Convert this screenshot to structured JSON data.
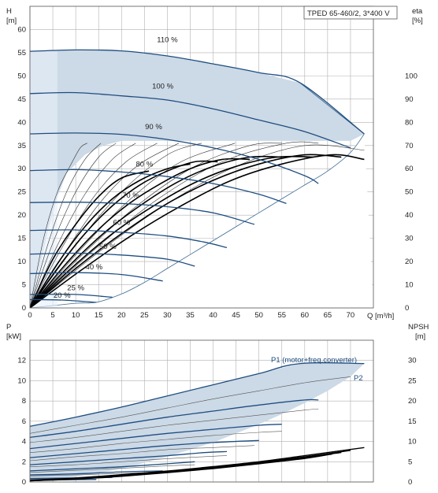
{
  "chart_data": [
    {
      "type": "line",
      "title": "TPED 65-460/2, 3*400 V",
      "xlabel": "Q [m³/h]",
      "ylabel_left_unit": "H",
      "ylabel_left_sub": "[m]",
      "ylabel_right_unit": "eta",
      "ylabel_right_sub": "[%]",
      "xlim": [
        0,
        75
      ],
      "ylim": [
        0,
        65
      ],
      "y2lim": [
        0,
        130
      ],
      "x_ticks": [
        0,
        5,
        10,
        15,
        20,
        25,
        30,
        35,
        40,
        45,
        50,
        55,
        60,
        65,
        70
      ],
      "y_ticks": [
        0,
        5,
        10,
        15,
        20,
        25,
        30,
        35,
        40,
        45,
        50,
        55,
        60
      ],
      "y2_ticks": [
        0,
        10,
        20,
        30,
        40,
        50,
        60,
        70,
        80,
        90,
        100
      ],
      "grid": true,
      "speed_curves": [
        {
          "name": "110 %",
          "x": [
            0,
            10,
            20,
            30,
            40,
            50,
            59,
            73
          ],
          "y": [
            55.3,
            55.6,
            55.4,
            54.3,
            52.6,
            50.7,
            48.5,
            37.5
          ]
        },
        {
          "name": "100 %",
          "x": [
            0,
            10,
            20,
            30,
            40,
            50,
            60,
            70
          ],
          "y": [
            46.2,
            46.4,
            45.7,
            44.8,
            42.9,
            40.5,
            38.0,
            34.5
          ]
        },
        {
          "name": "90 %",
          "x": [
            0,
            10,
            20,
            30,
            40,
            50,
            60,
            63
          ],
          "y": [
            37.5,
            37.7,
            37.4,
            36.3,
            34.5,
            32.0,
            28.5,
            26.8
          ]
        },
        {
          "name": "80 %",
          "x": [
            0,
            10,
            20,
            30,
            40,
            50,
            56
          ],
          "y": [
            29.6,
            29.8,
            29.3,
            28.3,
            26.8,
            24.5,
            22.5
          ]
        },
        {
          "name": "70 %",
          "x": [
            0,
            10,
            20,
            30,
            40,
            49
          ],
          "y": [
            22.7,
            22.8,
            22.5,
            21.8,
            20.5,
            18.0
          ]
        },
        {
          "name": "60 %",
          "x": [
            0,
            10,
            20,
            30,
            38,
            43
          ],
          "y": [
            16.7,
            16.8,
            16.3,
            15.5,
            14.2,
            13.0
          ]
        },
        {
          "name": "50 %",
          "x": [
            0,
            10,
            20,
            30,
            36
          ],
          "y": [
            11.6,
            11.8,
            11.4,
            10.5,
            9.0
          ]
        },
        {
          "name": "40 %",
          "x": [
            0,
            10,
            20,
            29
          ],
          "y": [
            7.4,
            7.6,
            7.2,
            5.8
          ]
        },
        {
          "name": "25 %",
          "x": [
            0,
            10,
            18
          ],
          "y": [
            2.9,
            2.9,
            2.3
          ]
        },
        {
          "name": "20 %",
          "x": [
            0,
            7,
            14.5
          ],
          "y": [
            1.8,
            1.7,
            1.2
          ]
        }
      ],
      "eta_curves": [
        {
          "name": "",
          "x": [
            0,
            3,
            6,
            9,
            11,
            12.5
          ],
          "y": [
            0,
            30,
            50,
            62,
            69,
            71
          ]
        },
        {
          "name": "",
          "x": [
            0,
            4,
            8,
            12,
            15.5
          ],
          "y": [
            0,
            28,
            50,
            64,
            71
          ]
        },
        {
          "name": "",
          "x": [
            0,
            5,
            10,
            15,
            18.8
          ],
          "y": [
            0,
            28,
            50,
            65,
            71
          ]
        },
        {
          "name": "",
          "x": [
            0,
            6,
            12,
            18,
            23.1
          ],
          "y": [
            0,
            27,
            49,
            64,
            71
          ]
        },
        {
          "name": "",
          "x": [
            0,
            7,
            14,
            21,
            27.8
          ],
          "y": [
            0,
            26,
            48,
            63,
            71
          ]
        },
        {
          "name": "",
          "x": [
            0,
            8,
            16,
            24,
            32.5
          ],
          "y": [
            0,
            25,
            47,
            62,
            71
          ]
        },
        {
          "name": "",
          "x": [
            0,
            10,
            20,
            30,
            37.5
          ],
          "y": [
            0,
            27,
            50,
            66,
            71
          ]
        },
        {
          "name": "",
          "x": [
            0,
            11,
            22,
            33,
            44.8
          ],
          "y": [
            0,
            25,
            47,
            63,
            71
          ]
        },
        {
          "name": "",
          "x": [
            0,
            12,
            24,
            36,
            48,
            55
          ],
          "y": [
            0,
            24,
            45,
            61,
            70,
            71
          ]
        },
        {
          "name": "",
          "x": [
            0,
            14,
            28,
            42,
            56,
            63
          ],
          "y": [
            0,
            25,
            47,
            63,
            71,
            71
          ]
        },
        {
          "name": "",
          "x": [
            0,
            15,
            30,
            45,
            60,
            73
          ],
          "y": [
            0,
            24,
            45,
            61,
            70,
            68
          ]
        }
      ],
      "eta_bold_curves": [
        {
          "name": "",
          "x": [
            0,
            5,
            10,
            15,
            20,
            26
          ],
          "y": [
            0,
            21,
            36,
            48,
            56,
            59
          ]
        },
        {
          "name": "",
          "x": [
            0,
            6,
            12,
            18,
            24,
            30,
            35
          ],
          "y": [
            0,
            19,
            35,
            47,
            55,
            60,
            62
          ]
        },
        {
          "name": "",
          "x": [
            0,
            6,
            12,
            18,
            24,
            30,
            36,
            41
          ],
          "y": [
            0,
            17,
            32,
            44,
            53,
            59,
            63,
            63
          ]
        },
        {
          "name": "",
          "x": [
            0,
            7,
            14,
            21,
            28,
            35,
            42,
            48
          ],
          "y": [
            0,
            17,
            32,
            44,
            53,
            60,
            64,
            64
          ]
        },
        {
          "name": "",
          "x": [
            0,
            8,
            16,
            24,
            32,
            40,
            48,
            55
          ],
          "y": [
            0,
            17,
            32,
            44,
            54,
            61,
            65,
            65
          ]
        },
        {
          "name": "",
          "x": [
            0,
            9,
            18,
            27,
            36,
            45,
            54,
            62
          ],
          "y": [
            0,
            17,
            32,
            44,
            54,
            61,
            65,
            65
          ]
        },
        {
          "name": "",
          "x": [
            0,
            10,
            20,
            30,
            40,
            50,
            60,
            68
          ],
          "y": [
            0,
            17,
            32,
            45,
            55,
            62,
            66,
            65
          ]
        },
        {
          "name": "",
          "x": [
            0,
            11,
            22,
            33,
            44,
            55,
            66,
            73
          ],
          "y": [
            0,
            16,
            31,
            44,
            55,
            62,
            66,
            64
          ]
        }
      ],
      "envelope": {
        "x": [
          0,
          2,
          4,
          6,
          8,
          12,
          16,
          20,
          25,
          30,
          35,
          40,
          45,
          50,
          55,
          60,
          65,
          70,
          73,
          73,
          59,
          50,
          40,
          30,
          20,
          10,
          0
        ],
        "y": [
          0,
          8,
          17,
          24,
          29,
          33,
          35,
          36,
          36,
          36,
          36,
          36,
          36,
          36,
          36,
          36,
          36,
          36,
          37.5,
          37.5,
          48.5,
          50.7,
          52.6,
          54.3,
          55.4,
          55.6,
          55.3
        ]
      },
      "lower_envelope": {
        "x": [
          0,
          10,
          14.5,
          20,
          25,
          30,
          35,
          40,
          45,
          50,
          55,
          60,
          65,
          70,
          73
        ],
        "y": [
          0,
          1,
          1.2,
          3,
          5.5,
          8.5,
          11.5,
          14.5,
          17.5,
          20.5,
          23.5,
          26.5,
          29.5,
          33.5,
          37.5
        ]
      }
    },
    {
      "type": "line",
      "xlabel": "",
      "ylabel_left_unit": "P",
      "ylabel_left_sub": "[kW]",
      "ylabel_right_unit": "NPSH",
      "ylabel_right_sub": "[m]",
      "xlim": [
        0,
        75
      ],
      "ylim": [
        0,
        14
      ],
      "y2lim": [
        0,
        35
      ],
      "x_ticks": [
        0,
        5,
        10,
        15,
        20,
        25,
        30,
        35,
        40,
        45,
        50,
        55,
        60,
        65,
        70
      ],
      "y_ticks": [
        0,
        2,
        4,
        6,
        8,
        10,
        12
      ],
      "y2_ticks": [
        0,
        5,
        10,
        15,
        20,
        25,
        30
      ],
      "grid": true,
      "annotations": [
        "P1 (motor+freq.converter)",
        "P2"
      ],
      "p1_curves": [
        {
          "name": "",
          "x": [
            0,
            10,
            20,
            30,
            40,
            50,
            59,
            73
          ],
          "y": [
            5.5,
            6.4,
            7.4,
            8.5,
            9.6,
            10.7,
            11.7,
            11.7
          ]
        },
        {
          "name": "",
          "x": [
            0,
            10,
            20,
            30,
            40,
            50,
            60,
            63
          ],
          "y": [
            4.4,
            5.0,
            5.7,
            6.4,
            7.0,
            7.6,
            8.1,
            8.1
          ]
        },
        {
          "name": "",
          "x": [
            0,
            10,
            20,
            30,
            40,
            50,
            55
          ],
          "y": [
            3.3,
            3.8,
            4.3,
            4.8,
            5.2,
            5.6,
            5.7
          ]
        },
        {
          "name": "",
          "x": [
            0,
            10,
            20,
            30,
            40,
            50
          ],
          "y": [
            2.4,
            2.8,
            3.2,
            3.6,
            3.9,
            4.1
          ]
        },
        {
          "name": "",
          "x": [
            0,
            10,
            20,
            30,
            38,
            43
          ],
          "y": [
            1.7,
            2.0,
            2.3,
            2.6,
            2.9,
            3.0
          ]
        },
        {
          "name": "",
          "x": [
            0,
            10,
            20,
            30,
            36
          ],
          "y": [
            1.1,
            1.3,
            1.5,
            1.8,
            2.0
          ]
        },
        {
          "name": "",
          "x": [
            0,
            10,
            20,
            29
          ],
          "y": [
            0.7,
            0.8,
            1.0,
            1.1
          ]
        },
        {
          "name": "",
          "x": [
            0,
            10,
            18
          ],
          "y": [
            0.35,
            0.4,
            0.45
          ]
        },
        {
          "name": "",
          "x": [
            0,
            7,
            14.5
          ],
          "y": [
            0.2,
            0.22,
            0.25
          ]
        }
      ],
      "p2_curves": [
        {
          "name": "",
          "x": [
            0,
            10,
            20,
            30,
            40,
            50,
            60,
            70
          ],
          "y": [
            4.8,
            5.6,
            6.4,
            7.3,
            8.2,
            9.0,
            9.8,
            10.4
          ]
        },
        {
          "name": "",
          "x": [
            0,
            10,
            20,
            30,
            40,
            50,
            60,
            63
          ],
          "y": [
            3.9,
            4.4,
            5.0,
            5.6,
            6.1,
            6.6,
            7.1,
            7.2
          ]
        },
        {
          "name": "",
          "x": [
            0,
            10,
            20,
            30,
            40,
            50,
            55
          ],
          "y": [
            2.9,
            3.3,
            3.8,
            4.2,
            4.6,
            4.9,
            5.0
          ]
        },
        {
          "name": "",
          "x": [
            0,
            10,
            20,
            30,
            40,
            49
          ],
          "y": [
            2.1,
            2.5,
            2.8,
            3.2,
            3.4,
            3.6
          ]
        },
        {
          "name": "",
          "x": [
            0,
            10,
            20,
            30,
            38,
            43
          ],
          "y": [
            1.5,
            1.7,
            2.0,
            2.3,
            2.5,
            2.6
          ]
        },
        {
          "name": "",
          "x": [
            0,
            10,
            20,
            30,
            36
          ],
          "y": [
            0.95,
            1.15,
            1.35,
            1.6,
            1.7
          ]
        },
        {
          "name": "",
          "x": [
            0,
            10,
            20,
            29
          ],
          "y": [
            0.6,
            0.7,
            0.85,
            0.95
          ]
        }
      ],
      "npsh_curves": [
        {
          "name": "",
          "x": [
            0,
            10,
            20,
            30,
            40,
            50,
            60,
            73
          ],
          "y2": [
            0.5,
            1.0,
            1.8,
            2.7,
            3.8,
            5.0,
            6.5,
            8.5
          ]
        },
        {
          "name": "",
          "x": [
            0,
            10,
            20,
            30,
            40,
            50,
            60,
            70
          ],
          "y2": [
            0.4,
            0.9,
            1.6,
            2.5,
            3.6,
            4.8,
            6.2,
            7.8
          ]
        },
        {
          "name": "",
          "x": [
            0,
            10,
            20,
            30,
            40,
            50,
            60,
            68
          ],
          "y2": [
            0.3,
            0.8,
            1.5,
            2.4,
            3.4,
            4.6,
            6.0,
            7.3
          ]
        },
        {
          "name": "",
          "x": [
            0,
            10,
            20,
            30,
            40,
            50,
            60,
            66
          ],
          "y2": [
            0.3,
            0.7,
            1.4,
            2.3,
            3.3,
            4.5,
            5.8,
            6.9
          ]
        }
      ],
      "envelope": {
        "x": [
          0,
          10,
          20,
          30,
          40,
          50,
          59,
          73,
          73,
          70,
          65,
          60,
          55,
          50,
          45,
          40,
          35,
          30,
          25,
          20,
          15,
          10,
          5,
          0
        ],
        "y": [
          5.5,
          6.4,
          7.4,
          8.5,
          9.6,
          10.7,
          11.7,
          11.7,
          11.7,
          10.4,
          9.0,
          7.8,
          6.7,
          5.7,
          4.8,
          3.9,
          3.2,
          2.5,
          1.9,
          1.3,
          0.9,
          0.5,
          0.3,
          0.2
        ]
      }
    }
  ],
  "colors": {
    "envelope_fill": "#ccd9e6",
    "envelope_edge": "#3c6b93",
    "speed_curve": "#1e4d80",
    "eta_thin": "#333333",
    "eta_bold": "#000000",
    "grid": "#b0b0b0",
    "p1_curve": "#1e4d80",
    "npsh_curve": "#000000",
    "near_zero_fill": "#e8f0fa"
  }
}
